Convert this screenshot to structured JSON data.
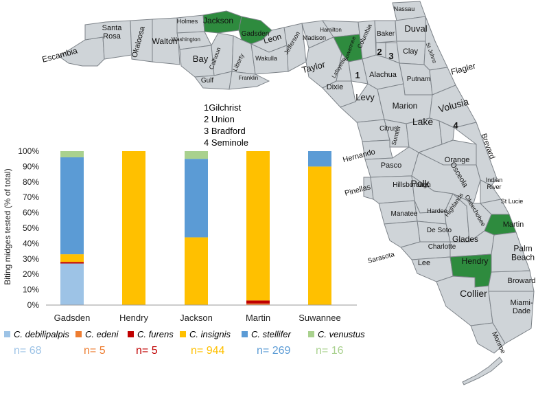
{
  "map": {
    "counties": [
      {
        "name": "Escambia"
      },
      {
        "name": "Santa\nRosa"
      },
      {
        "name": "Okaloosa"
      },
      {
        "name": "Walton"
      },
      {
        "name": "Holmes"
      },
      {
        "name": "Washington"
      },
      {
        "name": "Bay"
      },
      {
        "name": "Jackson"
      },
      {
        "name": "Calhoun"
      },
      {
        "name": "Gulf"
      },
      {
        "name": "Gadsden"
      },
      {
        "name": "Liberty"
      },
      {
        "name": "Franklin"
      },
      {
        "name": "Leon"
      },
      {
        "name": "Wakulla"
      },
      {
        "name": "Jefferson"
      },
      {
        "name": "Madison"
      },
      {
        "name": "Taylor"
      },
      {
        "name": "Hamilton"
      },
      {
        "name": "Suwannee"
      },
      {
        "name": "Lafayette"
      },
      {
        "name": "Dixie"
      },
      {
        "name": "Columbia"
      },
      {
        "name": "Baker"
      },
      {
        "name": "Nassau"
      },
      {
        "name": "Duval"
      },
      {
        "name": "Clay"
      },
      {
        "name": "St Johns"
      },
      {
        "name": "Flagler"
      },
      {
        "name": "Alachua"
      },
      {
        "name": "Putnam"
      },
      {
        "name": "Levy"
      },
      {
        "name": "Marion"
      },
      {
        "name": "Volusia"
      },
      {
        "name": "Citrus"
      },
      {
        "name": "Sumter"
      },
      {
        "name": "Lake"
      },
      {
        "name": "Hernando"
      },
      {
        "name": "Orange"
      },
      {
        "name": "Brevard"
      },
      {
        "name": "Pasco"
      },
      {
        "name": "Osceola"
      },
      {
        "name": "Pinellas"
      },
      {
        "name": "Hillsborough"
      },
      {
        "name": "Polk"
      },
      {
        "name": "Indian\nRiver"
      },
      {
        "name": "Manatee"
      },
      {
        "name": "Hardee"
      },
      {
        "name": "Highlands"
      },
      {
        "name": "Okeechobee"
      },
      {
        "name": "St Lucie"
      },
      {
        "name": "Martin"
      },
      {
        "name": "De Soto"
      },
      {
        "name": "Sarasota"
      },
      {
        "name": "Charlotte"
      },
      {
        "name": "Glades"
      },
      {
        "name": "Palm\nBeach"
      },
      {
        "name": "Lee"
      },
      {
        "name": "Hendry"
      },
      {
        "name": "Broward"
      },
      {
        "name": "Collier"
      },
      {
        "name": "Miami-\nDade"
      },
      {
        "name": "Monroe"
      },
      {
        "name": "1"
      },
      {
        "name": "2"
      },
      {
        "name": "3"
      },
      {
        "name": "4"
      }
    ],
    "highlight_color": "#2e8b3e",
    "base_color": "#cfd4d8",
    "key": [
      "1Gilchrist",
      "2 Union",
      "3 Bradford",
      "4 Seminole"
    ]
  },
  "chart_data": {
    "type": "bar",
    "stacked": true,
    "categories": [
      "Gadsden",
      "Hendry",
      "Jackson",
      "Martin",
      "Suwannee"
    ],
    "series": [
      {
        "name": "C. debilipalpis",
        "color": "#9dc3e6",
        "values": [
          27,
          0,
          0,
          0,
          0
        ]
      },
      {
        "name": "C. edeni",
        "color": "#ed7d31",
        "values": [
          0,
          0,
          0,
          1,
          0
        ]
      },
      {
        "name": "C. furens",
        "color": "#c00000",
        "values": [
          1,
          0,
          0,
          2,
          0
        ]
      },
      {
        "name": "C. insignis",
        "color": "#ffc000",
        "values": [
          5,
          100,
          44,
          97,
          90
        ]
      },
      {
        "name": "C. stellifer",
        "color": "#5b9bd5",
        "values": [
          63,
          0,
          51,
          0,
          10
        ]
      },
      {
        "name": "C. venustus",
        "color": "#a9d18e",
        "values": [
          4,
          0,
          5,
          0,
          0
        ]
      }
    ],
    "ylabel": "Biting midges tested (% of total)",
    "yticks": [
      "0%",
      "10%",
      "20%",
      "30%",
      "40%",
      "50%",
      "60%",
      "70%",
      "80%",
      "90%",
      "100%"
    ],
    "ylim": [
      0,
      100
    ],
    "grid": false,
    "legend": "bottom",
    "counts": [
      {
        "label": "n= 68",
        "color": "#9dc3e6"
      },
      {
        "label": "n= 5",
        "color": "#ed7d31"
      },
      {
        "label": "n= 5",
        "color": "#c00000"
      },
      {
        "label": "n= 944",
        "color": "#ffc000"
      },
      {
        "label": "n= 269",
        "color": "#5b9bd5"
      },
      {
        "label": "n= 16",
        "color": "#a9d18e"
      }
    ]
  }
}
